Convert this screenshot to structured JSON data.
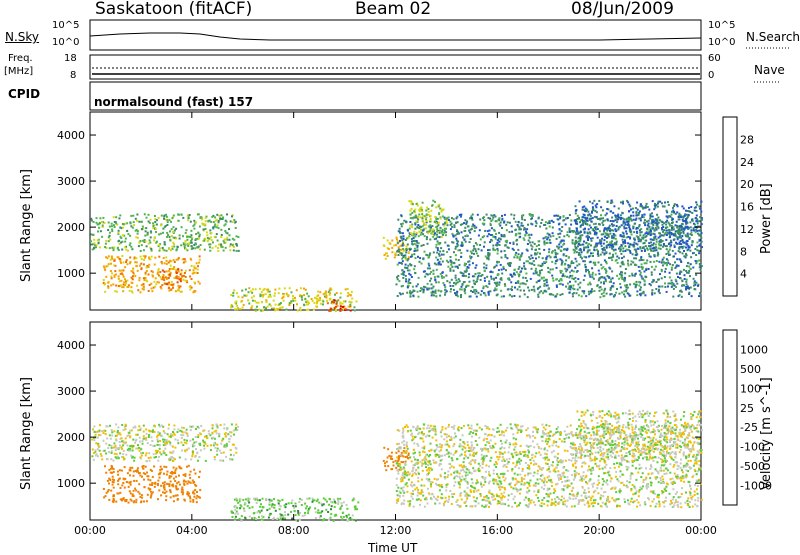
{
  "header": {
    "station": "Saskatoon (fitACF)",
    "beam": "Beam 02",
    "date": "08/Jun/2009"
  },
  "top_panel": {
    "left_label": "N.Sky",
    "right_label": "N.Search",
    "left_ticks": [
      "10^5",
      "10^0"
    ],
    "right_ticks": [
      "10^5",
      "10^0"
    ]
  },
  "freq_panel": {
    "left_label_1": "Freq.",
    "left_label_2": "[MHz]",
    "right_label": "Nave",
    "left_ticks": [
      "18",
      "8"
    ],
    "right_ticks": [
      "60",
      "0"
    ]
  },
  "cpid_panel": {
    "label": "CPID",
    "program": "normalsound (fast) 157"
  },
  "colors": {
    "power_scale": [
      "#1a1aff",
      "#2255c8",
      "#3a8a6a",
      "#4fb24f",
      "#d8d810",
      "#f5a400",
      "#f07000",
      "#e84000",
      "#e00000"
    ],
    "velocity_scale": [
      "#1a3aa8",
      "#2f6fd0",
      "#2e8a3a",
      "#5ccc3a",
      "#c8c8c0",
      "#f0c000",
      "#f08000",
      "#f05000",
      "#e00000"
    ]
  },
  "chart_data": [
    {
      "type": "heatmap",
      "title": "Power",
      "xlabel": "Time UT",
      "ylabel": "Slant Range [km]",
      "x_ticks": [
        "00:00",
        "04:00",
        "08:00",
        "12:00",
        "16:00",
        "20:00",
        "00:00"
      ],
      "y_ticks": [
        "1000",
        "2000",
        "3000",
        "4000"
      ],
      "ylim": [
        200,
        4500
      ],
      "colorbar_label": "Power [dB]",
      "colorbar_ticks": [
        "4",
        "8",
        "12",
        "16",
        "20",
        "24",
        "28"
      ],
      "regions": [
        {
          "t_start": 0.0,
          "t_end": 5.8,
          "r_start": 1500,
          "r_end": 2300,
          "level": 12
        },
        {
          "t_start": 0.5,
          "t_end": 4.3,
          "r_start": 600,
          "r_end": 1400,
          "level": 20
        },
        {
          "t_start": 2.8,
          "t_end": 3.6,
          "r_start": 700,
          "r_end": 1100,
          "level": 24
        },
        {
          "t_start": 5.5,
          "t_end": 10.5,
          "r_start": 200,
          "r_end": 700,
          "level": 16
        },
        {
          "t_start": 9.2,
          "t_end": 10.2,
          "r_start": 200,
          "r_end": 450,
          "level": 28
        },
        {
          "t_start": 11.5,
          "t_end": 12.5,
          "r_start": 1300,
          "r_end": 1800,
          "level": 18
        },
        {
          "t_start": 12.0,
          "t_end": 24.0,
          "r_start": 500,
          "r_end": 2300,
          "level": 8
        },
        {
          "t_start": 12.5,
          "t_end": 14.0,
          "r_start": 1800,
          "r_end": 2600,
          "level": 14
        },
        {
          "t_start": 19.0,
          "t_end": 24.0,
          "r_start": 1500,
          "r_end": 2600,
          "level": 6
        }
      ]
    },
    {
      "type": "heatmap",
      "title": "Velocity",
      "xlabel": "Time UT",
      "ylabel": "Slant Range [km]",
      "x_ticks": [
        "00:00",
        "04:00",
        "08:00",
        "12:00",
        "16:00",
        "20:00",
        "00:00"
      ],
      "y_ticks": [
        "1000",
        "2000",
        "3000",
        "4000"
      ],
      "ylim": [
        200,
        4500
      ],
      "colorbar_label": "Velocity [m s^-1]",
      "colorbar_ticks": [
        "1000",
        "500",
        "100",
        "25",
        "-25",
        "-100",
        "-500",
        "-1000"
      ],
      "regions": [
        {
          "t_start": 0.0,
          "t_end": 5.8,
          "r_start": 1500,
          "r_end": 2300,
          "velocity": 0
        },
        {
          "t_start": 0.5,
          "t_end": 4.3,
          "r_start": 600,
          "r_end": 1400,
          "velocity": -300
        },
        {
          "t_start": 5.5,
          "t_end": 10.5,
          "r_start": 200,
          "r_end": 700,
          "velocity": 60
        },
        {
          "t_start": 11.5,
          "t_end": 12.5,
          "r_start": 1300,
          "r_end": 1800,
          "velocity": -300
        },
        {
          "t_start": 12.0,
          "t_end": 24.0,
          "r_start": 500,
          "r_end": 2300,
          "velocity": 0
        },
        {
          "t_start": 19.0,
          "t_end": 24.0,
          "r_start": 1500,
          "r_end": 2600,
          "velocity": 0
        }
      ]
    }
  ]
}
